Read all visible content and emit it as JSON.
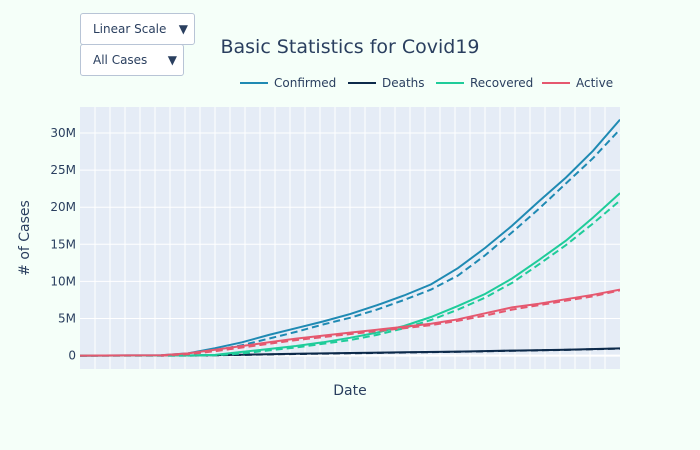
{
  "controls": {
    "scale_dropdown": {
      "value": "Linear Scale",
      "arrow": "▼"
    },
    "filter_dropdown": {
      "value": "All Cases",
      "arrow": "▼"
    }
  },
  "chart_data": {
    "type": "line",
    "title": "Basic Statistics for Covid19",
    "xlabel": "Date",
    "ylabel": "# of Cases",
    "xlim": [
      0,
      1
    ],
    "ylim": [
      -1.8,
      33.5
    ],
    "y_unit": "M",
    "y_ticks": [
      0,
      5,
      10,
      15,
      20,
      25,
      30
    ],
    "y_tick_labels": [
      "0",
      "5M",
      "10M",
      "15M",
      "20M",
      "25M",
      "30M"
    ],
    "grid": true,
    "legend_position": "top-right",
    "note": "x-axis is the progression of dates; tick labels are not printed. Solid = actual, dashed = fitted.",
    "series": [
      {
        "name": "Confirmed",
        "color": "#1f8ab3",
        "values": [
          [
            0,
            0
          ],
          [
            0.15,
            0.05
          ],
          [
            0.2,
            0.3
          ],
          [
            0.25,
            1.0
          ],
          [
            0.3,
            1.8
          ],
          [
            0.35,
            2.8
          ],
          [
            0.4,
            3.7
          ],
          [
            0.45,
            4.6
          ],
          [
            0.5,
            5.6
          ],
          [
            0.55,
            6.8
          ],
          [
            0.6,
            8.1
          ],
          [
            0.65,
            9.6
          ],
          [
            0.7,
            11.8
          ],
          [
            0.75,
            14.5
          ],
          [
            0.8,
            17.5
          ],
          [
            0.85,
            20.8
          ],
          [
            0.9,
            24.0
          ],
          [
            0.95,
            27.6
          ],
          [
            1.0,
            31.8
          ]
        ],
        "fit": [
          [
            0.15,
            0.0
          ],
          [
            0.2,
            0.15
          ],
          [
            0.25,
            0.7
          ],
          [
            0.3,
            1.4
          ],
          [
            0.35,
            2.3
          ],
          [
            0.4,
            3.2
          ],
          [
            0.45,
            4.2
          ],
          [
            0.5,
            5.1
          ],
          [
            0.55,
            6.2
          ],
          [
            0.6,
            7.5
          ],
          [
            0.65,
            8.9
          ],
          [
            0.7,
            10.8
          ],
          [
            0.75,
            13.5
          ],
          [
            0.8,
            16.6
          ],
          [
            0.85,
            19.8
          ],
          [
            0.9,
            23.2
          ],
          [
            0.95,
            26.6
          ],
          [
            1.0,
            30.5
          ]
        ]
      },
      {
        "name": "Deaths",
        "color": "#0d2a4a",
        "values": [
          [
            0,
            0
          ],
          [
            0.2,
            0.02
          ],
          [
            0.3,
            0.12
          ],
          [
            0.4,
            0.25
          ],
          [
            0.5,
            0.35
          ],
          [
            0.6,
            0.45
          ],
          [
            0.7,
            0.55
          ],
          [
            0.8,
            0.68
          ],
          [
            0.9,
            0.8
          ],
          [
            1.0,
            0.98
          ]
        ],
        "fit": [
          [
            0,
            0
          ],
          [
            0.2,
            0.01
          ],
          [
            0.3,
            0.1
          ],
          [
            0.4,
            0.22
          ],
          [
            0.5,
            0.32
          ],
          [
            0.6,
            0.42
          ],
          [
            0.7,
            0.52
          ],
          [
            0.8,
            0.65
          ],
          [
            0.9,
            0.77
          ],
          [
            1.0,
            0.95
          ]
        ]
      },
      {
        "name": "Recovered",
        "color": "#1fcc9a",
        "values": [
          [
            0,
            0
          ],
          [
            0.2,
            0.02
          ],
          [
            0.25,
            0.1
          ],
          [
            0.3,
            0.5
          ],
          [
            0.35,
            0.9
          ],
          [
            0.4,
            1.3
          ],
          [
            0.45,
            1.8
          ],
          [
            0.5,
            2.4
          ],
          [
            0.55,
            3.1
          ],
          [
            0.6,
            4.0
          ],
          [
            0.65,
            5.2
          ],
          [
            0.7,
            6.7
          ],
          [
            0.75,
            8.3
          ],
          [
            0.8,
            10.4
          ],
          [
            0.85,
            12.9
          ],
          [
            0.9,
            15.5
          ],
          [
            0.95,
            18.6
          ],
          [
            1.0,
            21.9
          ]
        ],
        "fit": [
          [
            0.2,
            0.0
          ],
          [
            0.25,
            0.05
          ],
          [
            0.3,
            0.3
          ],
          [
            0.35,
            0.7
          ],
          [
            0.4,
            1.1
          ],
          [
            0.45,
            1.6
          ],
          [
            0.5,
            2.1
          ],
          [
            0.55,
            2.8
          ],
          [
            0.6,
            3.7
          ],
          [
            0.65,
            4.8
          ],
          [
            0.7,
            6.2
          ],
          [
            0.75,
            7.8
          ],
          [
            0.8,
            9.8
          ],
          [
            0.85,
            12.3
          ],
          [
            0.9,
            14.9
          ],
          [
            0.95,
            17.8
          ],
          [
            1.0,
            20.9
          ]
        ]
      },
      {
        "name": "Active",
        "color": "#e5586f",
        "values": [
          [
            0,
            0
          ],
          [
            0.15,
            0.05
          ],
          [
            0.2,
            0.3
          ],
          [
            0.25,
            0.8
          ],
          [
            0.3,
            1.3
          ],
          [
            0.35,
            1.8
          ],
          [
            0.4,
            2.3
          ],
          [
            0.45,
            2.7
          ],
          [
            0.5,
            3.1
          ],
          [
            0.55,
            3.5
          ],
          [
            0.6,
            3.9
          ],
          [
            0.65,
            4.3
          ],
          [
            0.7,
            4.9
          ],
          [
            0.75,
            5.7
          ],
          [
            0.8,
            6.5
          ],
          [
            0.85,
            7.0
          ],
          [
            0.9,
            7.6
          ],
          [
            0.95,
            8.2
          ],
          [
            1.0,
            8.9
          ]
        ],
        "fit": [
          [
            0.15,
            0.0
          ],
          [
            0.2,
            0.2
          ],
          [
            0.25,
            0.6
          ],
          [
            0.3,
            1.1
          ],
          [
            0.35,
            1.6
          ],
          [
            0.4,
            2.1
          ],
          [
            0.45,
            2.5
          ],
          [
            0.5,
            2.9
          ],
          [
            0.55,
            3.3
          ],
          [
            0.6,
            3.7
          ],
          [
            0.65,
            4.1
          ],
          [
            0.7,
            4.7
          ],
          [
            0.75,
            5.4
          ],
          [
            0.8,
            6.2
          ],
          [
            0.85,
            6.8
          ],
          [
            0.9,
            7.4
          ],
          [
            0.95,
            8.0
          ],
          [
            1.0,
            8.8
          ]
        ]
      }
    ]
  }
}
